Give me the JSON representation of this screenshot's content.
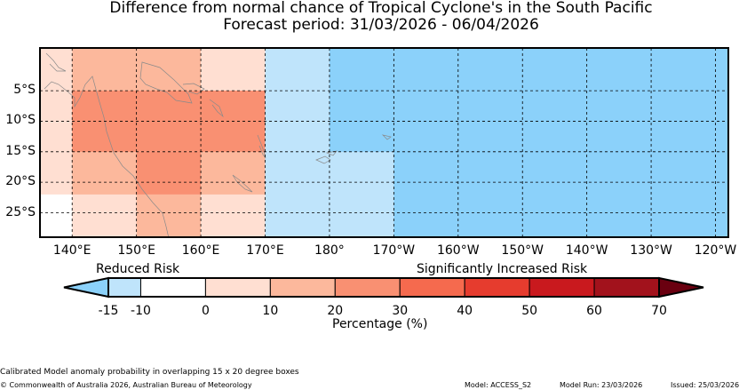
{
  "header": {
    "title": "Difference from normal chance of Tropical Cyclone's in the South Pacific",
    "subtitle": "Forecast period: 31/03/2026 - 06/04/2026"
  },
  "map": {
    "lon_range": [
      135,
      242
    ],
    "lat_range": [
      2,
      -29
    ],
    "lon_ticks": [
      {
        "value": 140,
        "label": "140°E"
      },
      {
        "value": 150,
        "label": "150°E"
      },
      {
        "value": 160,
        "label": "160°E"
      },
      {
        "value": 170,
        "label": "170°E"
      },
      {
        "value": 180,
        "label": "180°"
      },
      {
        "value": 190,
        "label": "170°W"
      },
      {
        "value": 200,
        "label": "160°W"
      },
      {
        "value": 210,
        "label": "150°W"
      },
      {
        "value": 220,
        "label": "140°W"
      },
      {
        "value": 230,
        "label": "130°W"
      },
      {
        "value": 240,
        "label": "120°W"
      }
    ],
    "lat_ticks": [
      {
        "value": -5,
        "label": "5°S"
      },
      {
        "value": -10,
        "label": "10°S"
      },
      {
        "value": -15,
        "label": "15°S"
      },
      {
        "value": -20,
        "label": "20°S"
      },
      {
        "value": -25,
        "label": "25°S"
      }
    ],
    "boxes": [
      {
        "lon": [
          135,
          140
        ],
        "lat": [
          2,
          -22
        ],
        "value": 5
      },
      {
        "lon": [
          140,
          150
        ],
        "lat": [
          2,
          -29
        ],
        "value": 5
      },
      {
        "lon": [
          150,
          160
        ],
        "lat": [
          2,
          -29
        ],
        "value": 5
      },
      {
        "lon": [
          160,
          170
        ],
        "lat": [
          2,
          -29
        ],
        "value": 5
      },
      {
        "lon": [
          140,
          160
        ],
        "lat": [
          2,
          -5
        ],
        "value": 15
      },
      {
        "lon": [
          140,
          150
        ],
        "lat": [
          -5,
          -22
        ],
        "value": 15
      },
      {
        "lon": [
          150,
          160
        ],
        "lat": [
          -22,
          -29
        ],
        "value": 15
      },
      {
        "lon": [
          160,
          170
        ],
        "lat": [
          -5,
          -22
        ],
        "value": 15
      },
      {
        "lon": [
          140,
          170
        ],
        "lat": [
          -5,
          -15
        ],
        "value": 25
      },
      {
        "lon": [
          150,
          160
        ],
        "lat": [
          -15,
          -22
        ],
        "value": 25
      },
      {
        "lon": [
          170,
          180
        ],
        "lat": [
          2,
          -1
        ],
        "value": -12
      },
      {
        "lon": [
          170,
          242
        ],
        "lat": [
          2,
          -29
        ],
        "value": -12
      },
      {
        "lon": [
          180,
          190
        ],
        "lat": [
          2,
          -15
        ],
        "value": -20
      },
      {
        "lon": [
          190,
          242
        ],
        "lat": [
          2,
          -29
        ],
        "value": -20
      }
    ]
  },
  "colorbar": {
    "left_caption": "Reduced Risk",
    "right_caption": "Significantly Increased Risk",
    "tick_labels": [
      "-15",
      "-10",
      "0",
      "10",
      "20",
      "30",
      "40",
      "50",
      "60",
      "70"
    ],
    "bins": [
      {
        "from": -15,
        "to": -10,
        "color": "#bfe4fb"
      },
      {
        "from": -10,
        "to": 0,
        "color": "#ffffff"
      },
      {
        "from": 0,
        "to": 10,
        "color": "#ffdfd2"
      },
      {
        "from": 10,
        "to": 20,
        "color": "#fcb89c"
      },
      {
        "from": 20,
        "to": 30,
        "color": "#f99072"
      },
      {
        "from": 30,
        "to": 40,
        "color": "#f56a4e"
      },
      {
        "from": 40,
        "to": 50,
        "color": "#e63c2e"
      },
      {
        "from": 50,
        "to": 60,
        "color": "#c9191e"
      },
      {
        "from": 60,
        "to": 70,
        "color": "#a2121c"
      }
    ],
    "under_color": "#8bd1fa",
    "over_color": "#6a0010",
    "axis_label": "Percentage (%)"
  },
  "footer": {
    "note": "Calibrated Model anomaly probability in overlapping 15 x 20 degree boxes",
    "copyright": "© Commonwealth of Australia 2026, Australian Bureau of Meteorology",
    "model": "Model: ACCESS_S2",
    "model_run": "Model Run: 23/03/2026",
    "issued": "Issued: 25/03/2026"
  }
}
